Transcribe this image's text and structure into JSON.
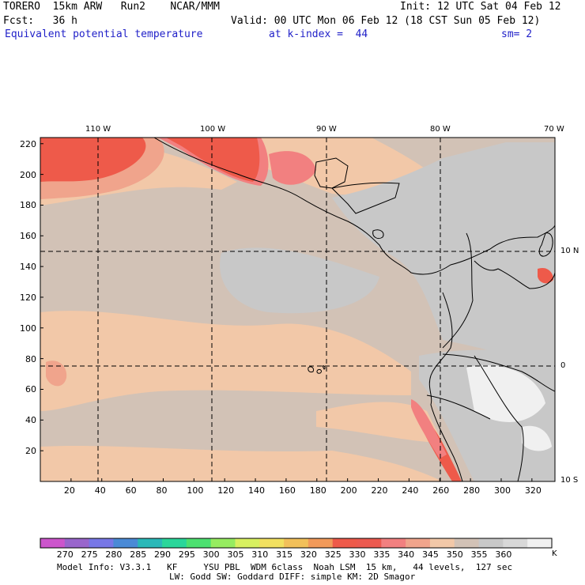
{
  "header": {
    "model": "TORERO  15km ARW   Run2    NCAR/MMM",
    "init": "Init: 12 UTC Sat 04 Feb 12",
    "fcst": "Fcst:   36 h",
    "valid": "Valid: 00 UTC Mon 06 Feb 12 (18 CST Sun 05 Feb 12)",
    "field": "Equivalent potential temperature",
    "kindex": "at k-index =  44",
    "smooth": "sm= 2"
  },
  "map": {
    "lon_labels": [
      "110 W",
      "100 W",
      "90 W",
      "80 W",
      "70 W"
    ],
    "lat_labels": [
      "10 N",
      "0",
      "10 S"
    ],
    "x_ticks": [
      "20",
      "40",
      "60",
      "80",
      "100",
      "120",
      "140",
      "160",
      "180",
      "200",
      "220",
      "240",
      "260",
      "280",
      "300",
      "320"
    ],
    "y_ticks": [
      "220",
      "200",
      "180",
      "160",
      "140",
      "120",
      "100",
      "80",
      "60",
      "40",
      "20"
    ]
  },
  "colorbar": {
    "colors": [
      "#cc55cc",
      "#9966cc",
      "#7777e6",
      "#4a8ad6",
      "#2ab8b8",
      "#2ad69a",
      "#4ce070",
      "#96ec60",
      "#d8f060",
      "#f2e060",
      "#f2c05a",
      "#f29a5a",
      "#ee5a4a",
      "#ec5a50",
      "#f28080",
      "#f0a48c",
      "#f2c8a8",
      "#d2c2b6",
      "#c8c8c8",
      "#d8d8d8",
      "#f0f0f0"
    ],
    "values": [
      "270",
      "275",
      "280",
      "285",
      "290",
      "295",
      "300",
      "305",
      "310",
      "315",
      "320",
      "325",
      "330",
      "335",
      "340",
      "345",
      "350",
      "355",
      "360"
    ],
    "unit": "K"
  },
  "footer": {
    "line1": "Model Info: V3.3.1   KF     YSU PBL  WDM 6class  Noah LSM  15 km,   44 levels,  127 sec",
    "line2": "LW: Godd SW: Goddard DIFF: simple KM: 2D Smagor"
  }
}
